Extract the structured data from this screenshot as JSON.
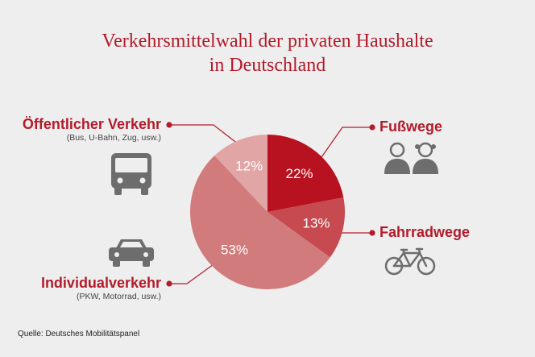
{
  "title_line1": "Verkehrsmittelwahl der privaten Haushalte",
  "title_line2": "in Deutschland",
  "source": "Quelle: Deutsches Mobilitätspanel",
  "colors": {
    "fusswege": "#b8111f",
    "fahrradwege": "#c64a4f",
    "individualverkehr": "#d27b7d",
    "oeffentlich": "#e2a5a6",
    "accent": "#b31b2b",
    "icon": "#6d6d6d"
  },
  "labels": {
    "oeffentlich": {
      "title": "Öffentlicher Verkehr",
      "sub": "(Bus, U-Bahn, Zug, usw.)",
      "icon": "bus-icon"
    },
    "individual": {
      "title": "Individualverkehr",
      "sub": "(PKW, Motorrad, usw.)",
      "icon": "car-icon"
    },
    "fusswege": {
      "title": "Fußwege",
      "icon": "pedestrians-icon"
    },
    "fahrrad": {
      "title": "Fahrradwege",
      "icon": "bicycle-icon"
    }
  },
  "chart_data": {
    "type": "pie",
    "categories": [
      "Fußwege",
      "Fahrradwege",
      "Individualverkehr",
      "Öffentlicher Verkehr"
    ],
    "values": [
      22,
      13,
      53,
      12
    ],
    "data_labels": [
      "22%",
      "13%",
      "53%",
      "12%"
    ]
  }
}
